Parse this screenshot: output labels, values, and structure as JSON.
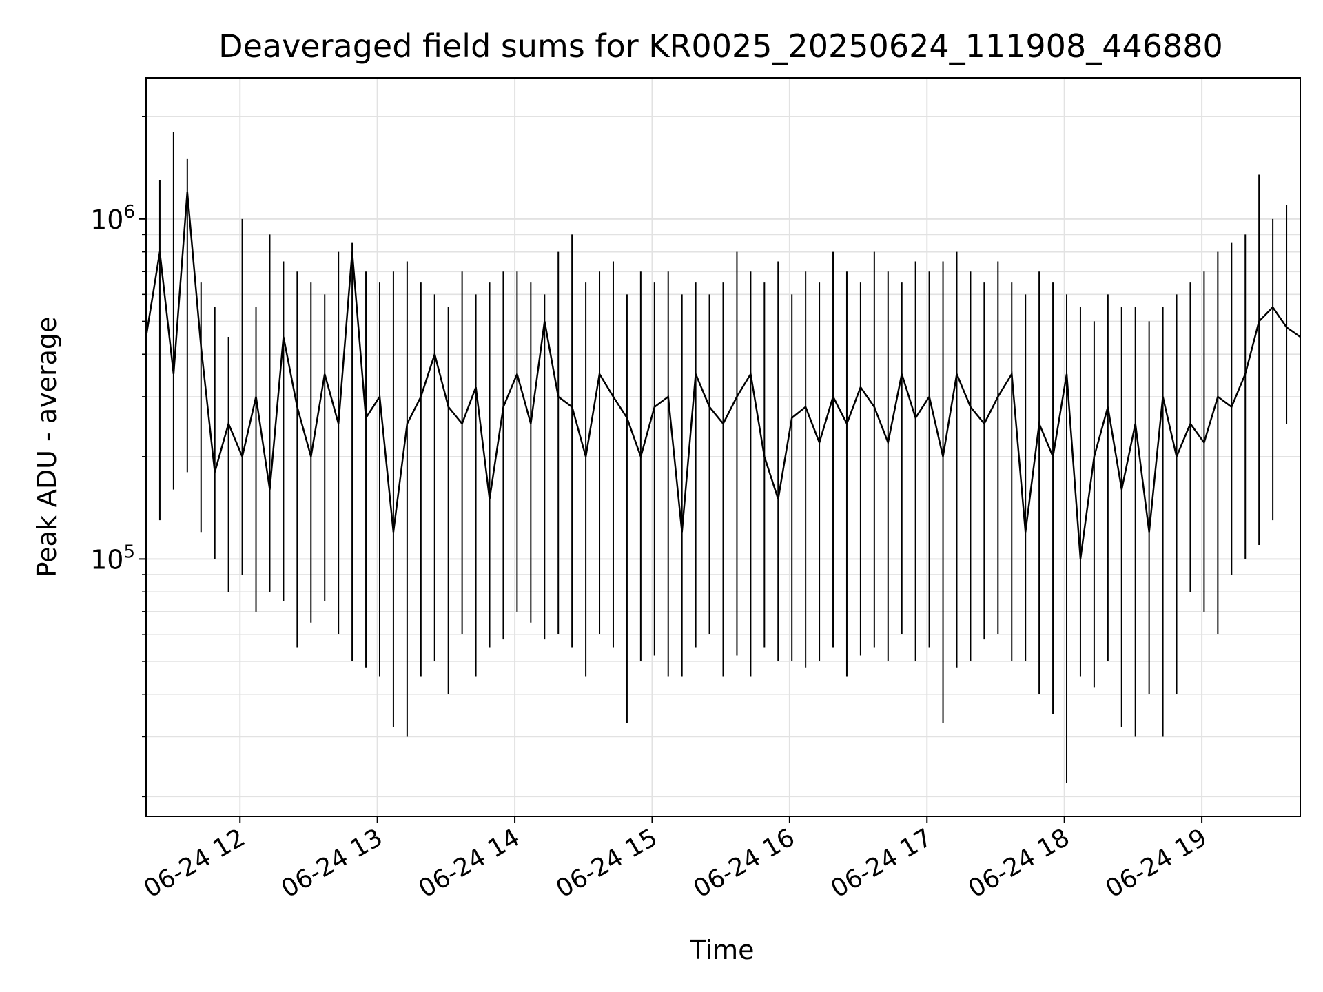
{
  "chart_data": {
    "type": "line",
    "title": "Deaveraged field sums for KR0025_20250624_111908_446880",
    "xlabel": "Time",
    "ylabel": "Peak ADU - average",
    "yscale": "log",
    "xlim": [
      "06-24 11:19",
      "06-24 19:43"
    ],
    "ylim": [
      17500,
      2600000
    ],
    "grid": true,
    "x_ticks": [
      {
        "label": "06-24 12",
        "value": "06-24 12:00"
      },
      {
        "label": "06-24 13",
        "value": "06-24 13:00"
      },
      {
        "label": "06-24 14",
        "value": "06-24 14:00"
      },
      {
        "label": "06-24 15",
        "value": "06-24 15:00"
      },
      {
        "label": "06-24 16",
        "value": "06-24 16:00"
      },
      {
        "label": "06-24 17",
        "value": "06-24 17:00"
      },
      {
        "label": "06-24 18",
        "value": "06-24 18:00"
      },
      {
        "label": "06-24 19",
        "value": "06-24 19:00"
      }
    ],
    "y_ticks": [
      {
        "base": "10",
        "exp": "5",
        "value": 100000
      },
      {
        "base": "10",
        "exp": "6",
        "value": 1000000
      }
    ],
    "series": [
      {
        "color": "#000000",
        "x": [
          "06-24 11:19",
          "06-24 11:25",
          "06-24 11:31",
          "06-24 11:37",
          "06-24 11:43",
          "06-24 11:49",
          "06-24 11:55",
          "06-24 12:01",
          "06-24 12:07",
          "06-24 12:13",
          "06-24 12:19",
          "06-24 12:25",
          "06-24 12:31",
          "06-24 12:37",
          "06-24 12:43",
          "06-24 12:49",
          "06-24 12:55",
          "06-24 13:01",
          "06-24 13:07",
          "06-24 13:13",
          "06-24 13:19",
          "06-24 13:25",
          "06-24 13:31",
          "06-24 13:37",
          "06-24 13:43",
          "06-24 13:49",
          "06-24 13:55",
          "06-24 14:01",
          "06-24 14:07",
          "06-24 14:13",
          "06-24 14:19",
          "06-24 14:25",
          "06-24 14:31",
          "06-24 14:37",
          "06-24 14:43",
          "06-24 14:49",
          "06-24 14:55",
          "06-24 15:01",
          "06-24 15:07",
          "06-24 15:13",
          "06-24 15:19",
          "06-24 15:25",
          "06-24 15:31",
          "06-24 15:37",
          "06-24 15:43",
          "06-24 15:49",
          "06-24 15:55",
          "06-24 16:01",
          "06-24 16:07",
          "06-24 16:13",
          "06-24 16:19",
          "06-24 16:25",
          "06-24 16:31",
          "06-24 16:37",
          "06-24 16:43",
          "06-24 16:49",
          "06-24 16:55",
          "06-24 17:01",
          "06-24 17:07",
          "06-24 17:13",
          "06-24 17:19",
          "06-24 17:25",
          "06-24 17:31",
          "06-24 17:37",
          "06-24 17:43",
          "06-24 17:49",
          "06-24 17:55",
          "06-24 18:01",
          "06-24 18:07",
          "06-24 18:13",
          "06-24 18:19",
          "06-24 18:25",
          "06-24 18:31",
          "06-24 18:37",
          "06-24 18:43",
          "06-24 18:49",
          "06-24 18:55",
          "06-24 19:01",
          "06-24 19:07",
          "06-24 19:13",
          "06-24 19:19",
          "06-24 19:25",
          "06-24 19:31",
          "06-24 19:37",
          "06-24 19:43"
        ],
        "y": [
          450000,
          800000,
          350000,
          1200000,
          420000,
          180000,
          250000,
          200000,
          300000,
          160000,
          450000,
          280000,
          200000,
          350000,
          250000,
          800000,
          260000,
          300000,
          120000,
          250000,
          300000,
          400000,
          280000,
          250000,
          320000,
          150000,
          280000,
          350000,
          250000,
          500000,
          300000,
          280000,
          200000,
          350000,
          300000,
          260000,
          200000,
          280000,
          300000,
          120000,
          350000,
          280000,
          250000,
          300000,
          350000,
          200000,
          150000,
          260000,
          280000,
          220000,
          300000,
          250000,
          320000,
          280000,
          220000,
          350000,
          260000,
          300000,
          200000,
          350000,
          280000,
          250000,
          300000,
          350000,
          120000,
          250000,
          200000,
          350000,
          100000,
          200000,
          280000,
          160000,
          250000,
          120000,
          300000,
          200000,
          250000,
          220000,
          300000,
          280000,
          350000,
          500000,
          550000,
          480000,
          450000
        ],
        "y_min": [
          180000,
          130000,
          160000,
          180000,
          120000,
          100000,
          80000,
          90000,
          70000,
          80000,
          75000,
          55000,
          65000,
          75000,
          60000,
          50000,
          48000,
          45000,
          32000,
          30000,
          45000,
          50000,
          40000,
          60000,
          45000,
          55000,
          58000,
          70000,
          65000,
          58000,
          60000,
          55000,
          45000,
          60000,
          55000,
          33000,
          50000,
          52000,
          45000,
          45000,
          55000,
          60000,
          45000,
          52000,
          45000,
          55000,
          50000,
          50000,
          48000,
          50000,
          55000,
          45000,
          52000,
          55000,
          50000,
          60000,
          50000,
          55000,
          33000,
          48000,
          50000,
          58000,
          60000,
          50000,
          50000,
          40000,
          35000,
          22000,
          45000,
          42000,
          50000,
          32000,
          30000,
          40000,
          30000,
          40000,
          80000,
          70000,
          60000,
          90000,
          100000,
          110000,
          130000,
          250000,
          300000
        ],
        "y_max": [
          1150000,
          1300000,
          1800000,
          1500000,
          650000,
          550000,
          450000,
          1000000,
          550000,
          900000,
          750000,
          700000,
          650000,
          600000,
          800000,
          850000,
          700000,
          650000,
          700000,
          750000,
          650000,
          600000,
          550000,
          700000,
          600000,
          650000,
          700000,
          700000,
          650000,
          600000,
          800000,
          900000,
          650000,
          700000,
          750000,
          600000,
          700000,
          650000,
          700000,
          600000,
          650000,
          600000,
          650000,
          800000,
          700000,
          650000,
          750000,
          600000,
          700000,
          650000,
          800000,
          700000,
          650000,
          800000,
          700000,
          650000,
          750000,
          700000,
          750000,
          800000,
          700000,
          650000,
          750000,
          650000,
          600000,
          700000,
          650000,
          600000,
          550000,
          500000,
          600000,
          550000,
          550000,
          500000,
          550000,
          600000,
          650000,
          700000,
          800000,
          850000,
          900000,
          1350000,
          1000000,
          1100000,
          2200000
        ]
      }
    ]
  }
}
